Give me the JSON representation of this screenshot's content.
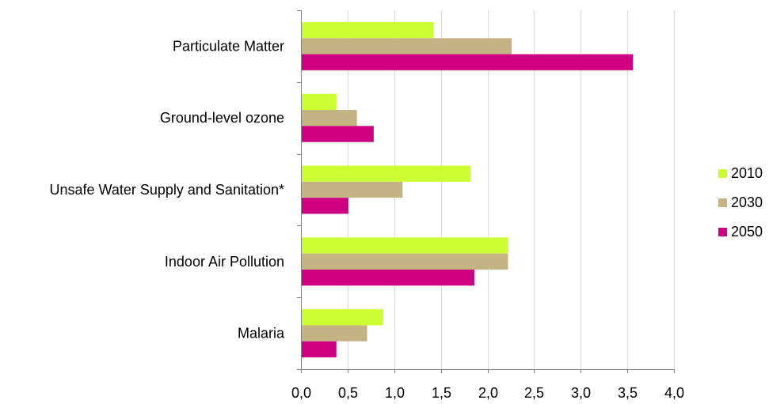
{
  "chart_data": {
    "type": "bar",
    "orientation": "horizontal",
    "categories": [
      "Particulate Matter",
      "Ground-level  ozone",
      "Unsafe Water Supply and Sanitation*",
      "Indoor Air Pollution",
      "Malaria"
    ],
    "series": [
      {
        "name": "2010",
        "color": "#ccff33",
        "values": [
          1.42,
          0.38,
          1.82,
          2.22,
          0.88
        ]
      },
      {
        "name": "2030",
        "color": "#c4b483",
        "values": [
          2.26,
          0.6,
          1.09,
          2.22,
          0.71
        ]
      },
      {
        "name": "2050",
        "color": "#cc0080",
        "values": [
          3.56,
          0.78,
          0.51,
          1.86,
          0.38
        ]
      }
    ],
    "xlim": [
      0,
      4
    ],
    "ticks": [
      "0,0",
      "0,5",
      "1,0",
      "1,5",
      "2,0",
      "2,5",
      "3,0",
      "3,5",
      "4,0"
    ],
    "title": "",
    "xlabel": "",
    "ylabel": "",
    "grid": "vertical",
    "legend_position": "right"
  }
}
